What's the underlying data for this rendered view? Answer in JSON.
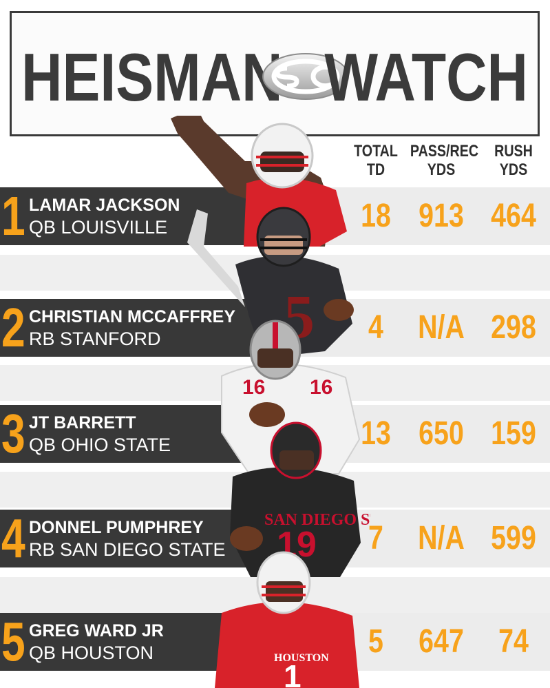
{
  "header": {
    "title_left": "HEISMAN",
    "title_right": "WATCH",
    "logo": "sc-logo"
  },
  "columns": {
    "total_td": [
      "TOTAL",
      "TD"
    ],
    "pass_rec": [
      "PASS/REC",
      "YDS"
    ],
    "rush": [
      "RUSH",
      "YDS"
    ]
  },
  "players": [
    {
      "rank": "1",
      "name": "LAMAR JACKSON",
      "position": "QB LOUISVILLE",
      "total_td": "18",
      "pass_rec_yds": "913",
      "rush_yds": "464",
      "jersey_color": "#d8222a"
    },
    {
      "rank": "2",
      "name": "CHRISTIAN MCCAFFREY",
      "position": "RB STANFORD",
      "total_td": "4",
      "pass_rec_yds": "N/A",
      "rush_yds": "298",
      "jersey_color": "#2f2f33"
    },
    {
      "rank": "3",
      "name": "JT BARRETT",
      "position": "QB OHIO STATE",
      "total_td": "13",
      "pass_rec_yds": "650",
      "rush_yds": "159",
      "jersey_color": "#f2f2f2"
    },
    {
      "rank": "4",
      "name": "DONNEL PUMPHREY",
      "position": "RB SAN DIEGO STATE",
      "total_td": "7",
      "pass_rec_yds": "N/A",
      "rush_yds": "599",
      "jersey_color": "#262626"
    },
    {
      "rank": "5",
      "name": "GREG WARD JR",
      "position": "QB HOUSTON",
      "total_td": "5",
      "pass_rec_yds": "647",
      "rush_yds": "74",
      "jersey_color": "#d8222a"
    }
  ],
  "colors": {
    "accent": "#f7a21b",
    "dark_band": "#383838",
    "light_band": "#ececec",
    "title_text": "#3b3b3b"
  }
}
